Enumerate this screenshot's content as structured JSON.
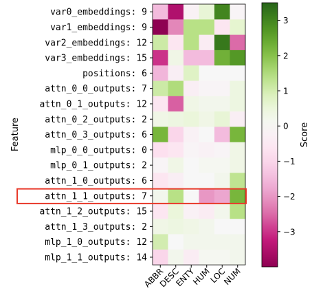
{
  "chart_data": {
    "type": "heatmap",
    "title": "",
    "ylabel": "Feature",
    "xlabel": "",
    "colorbar_label": "Score",
    "colormap": "PiYG",
    "vmin": -4,
    "vmax": 3.5,
    "colorbar_ticks": [
      3,
      2,
      1,
      0,
      -1,
      -2,
      -3
    ],
    "colorbar_tick_labels": [
      "3",
      "2",
      "1",
      "0",
      "−1",
      "−2",
      "−3"
    ],
    "columns": [
      "ABBR",
      "DESC",
      "ENTY",
      "HUM",
      "LOC",
      "NUM"
    ],
    "rows": [
      "var0_embeddings: 9",
      "var1_embeddings: 9",
      "var2_embeddings: 12",
      "var3_embeddings: 15",
      "positions: 6",
      "attn_0_0_outputs: 7",
      "attn_0_1_outputs: 12",
      "attn_0_2_outputs: 2",
      "attn_0_3_outputs: 6",
      "mlp_0_0_outputs: 0",
      "mlp_0_1_outputs: 2",
      "attn_1_0_outputs: 6",
      "attn_1_1_outputs: 7",
      "attn_1_2_outputs: 15",
      "attn_1_3_outputs: 2",
      "mlp_1_0_outputs: 12",
      "mlp_1_1_outputs: 14"
    ],
    "values": [
      [
        -1.5,
        -3.5,
        -0.2,
        0.6,
        3.0,
        -0.1
      ],
      [
        -4.0,
        -2.2,
        1.4,
        1.4,
        -0.6,
        0.7
      ],
      [
        1.1,
        -0.6,
        1.4,
        -0.4,
        3.2,
        -2.5
      ],
      [
        -3.0,
        0.3,
        -1.5,
        -1.5,
        2.3,
        2.7
      ],
      [
        -1.6,
        -0.3,
        0.8,
        0.0,
        0.0,
        0.0
      ],
      [
        1.1,
        1.5,
        -0.3,
        -0.1,
        -0.1,
        0.4
      ],
      [
        -0.6,
        -2.6,
        0.3,
        0.2,
        0.2,
        0.4
      ],
      [
        0.3,
        0.4,
        0.5,
        0.3,
        0.6,
        -0.3
      ],
      [
        2.2,
        -1.0,
        -0.2,
        0.0,
        -1.5,
        2.2
      ],
      [
        -0.8,
        -0.6,
        -0.1,
        -0.2,
        -0.1,
        0.3
      ],
      [
        -0.1,
        0.3,
        0.0,
        0.1,
        0.1,
        0.3
      ],
      [
        -0.6,
        -0.3,
        0.0,
        0.0,
        0.2,
        1.3
      ],
      [
        0.2,
        1.4,
        0.0,
        -2.0,
        -1.8,
        2.2
      ],
      [
        -0.6,
        0.5,
        -0.2,
        -0.4,
        0.2,
        1.4
      ],
      [
        0.3,
        0.4,
        0.3,
        0.2,
        0.0,
        0.0
      ],
      [
        1.0,
        0.0,
        0.2,
        0.2,
        0.2,
        0.2
      ],
      [
        -1.0,
        0.2,
        -0.4,
        0.1,
        0.1,
        0.2
      ]
    ],
    "highlighted_row": "attn_1_1_outputs: 7",
    "highlight_color": "#e8392a",
    "grid": false
  }
}
